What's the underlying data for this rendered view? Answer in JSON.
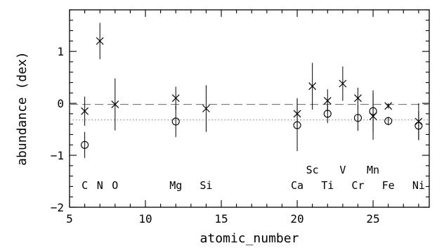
{
  "chart_data": {
    "type": "scatter",
    "title": "",
    "xlabel": "atomic_number",
    "ylabel": "abundance (dex)",
    "xlim": [
      5,
      28.7
    ],
    "ylim": [
      -2,
      1.8
    ],
    "xticks": [
      5,
      10,
      15,
      20,
      25
    ],
    "yticks": [
      -2,
      -1,
      0,
      1
    ],
    "grid": false,
    "reference_lines": [
      {
        "style": "dashed",
        "y": -0.02
      },
      {
        "style": "dotted",
        "y": -0.32
      }
    ],
    "series": [
      {
        "marker": "x",
        "points": [
          {
            "x": 6,
            "y": -0.15,
            "err": 0.28
          },
          {
            "x": 7,
            "y": 1.2,
            "err": 0.35
          },
          {
            "x": 8,
            "y": -0.02,
            "err": 0.5
          },
          {
            "x": 12,
            "y": 0.1,
            "err": 0.22
          },
          {
            "x": 14,
            "y": -0.1,
            "err": 0.45
          },
          {
            "x": 20,
            "y": -0.2,
            "err": 0.3
          },
          {
            "x": 21,
            "y": 0.33,
            "err": 0.45
          },
          {
            "x": 22,
            "y": 0.05,
            "err": 0.22
          },
          {
            "x": 23,
            "y": 0.38,
            "err": 0.33
          },
          {
            "x": 24,
            "y": 0.1,
            "err": 0.2
          },
          {
            "x": 25,
            "y": -0.25,
            "err": 0.45
          },
          {
            "x": 26,
            "y": -0.05,
            "err": 0.05
          },
          {
            "x": 28,
            "y": -0.35,
            "err": 0.35
          }
        ]
      },
      {
        "marker": "o",
        "points": [
          {
            "x": 6,
            "y": -0.8,
            "err": 0.25
          },
          {
            "x": 12,
            "y": -0.35,
            "err": 0.3
          },
          {
            "x": 20,
            "y": -0.42,
            "err": 0.5
          },
          {
            "x": 22,
            "y": -0.2,
            "err": 0.18
          },
          {
            "x": 24,
            "y": -0.28,
            "err": 0.25
          },
          {
            "x": 25,
            "y": -0.15,
            "err": 0.4
          },
          {
            "x": 26,
            "y": -0.34,
            "err": 0.08
          },
          {
            "x": 28,
            "y": -0.43,
            "err": 0.28
          }
        ]
      }
    ],
    "element_labels": [
      {
        "text": "C",
        "x": 6,
        "row": "low"
      },
      {
        "text": "N",
        "x": 7,
        "row": "low"
      },
      {
        "text": "O",
        "x": 8,
        "row": "low"
      },
      {
        "text": "Mg",
        "x": 12,
        "row": "low"
      },
      {
        "text": "Si",
        "x": 14,
        "row": "low"
      },
      {
        "text": "Ca",
        "x": 20,
        "row": "low"
      },
      {
        "text": "Sc",
        "x": 21,
        "row": "high"
      },
      {
        "text": "Ti",
        "x": 22,
        "row": "low"
      },
      {
        "text": "V",
        "x": 23,
        "row": "high"
      },
      {
        "text": "Cr",
        "x": 24,
        "row": "low"
      },
      {
        "text": "Mn",
        "x": 25,
        "row": "high"
      },
      {
        "text": "Fe",
        "x": 26,
        "row": "low"
      },
      {
        "text": "Ni",
        "x": 28,
        "row": "low"
      }
    ]
  }
}
